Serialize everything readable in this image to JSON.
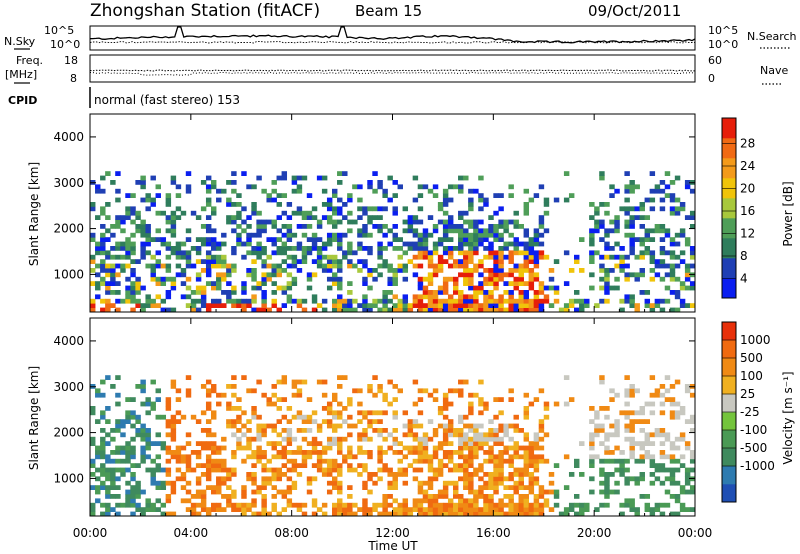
{
  "header": {
    "station": "Zhongshan Station (fitACF)",
    "beam": "Beam 15",
    "date": "09/Oct/2011",
    "nsky_label": "N.Sky",
    "nsearch_label": "N.Search",
    "freq_label": "Freq.",
    "freq_unit": "[MHz]",
    "nave_label": "Nave",
    "cpid_label": "CPID",
    "cpid_text": "normal (fast stereo) 153",
    "nsky_ticks": [
      "10^5",
      "10^0"
    ],
    "nsearch_ticks": [
      "10^5",
      "10^0"
    ],
    "freq_ticks": [
      "18",
      "8"
    ],
    "nave_ticks": [
      "60",
      "0"
    ]
  },
  "chart_data": [
    {
      "type": "heatmap",
      "name": "power",
      "ylabel": "Slant Range [km]",
      "xlabel": "Time UT",
      "ylim": [
        180,
        4500
      ],
      "xlim": [
        "00:00",
        "24:00"
      ],
      "y_ticks": [
        "1000",
        "2000",
        "3000",
        "4000"
      ],
      "x_ticks": [
        "00:00",
        "04:00",
        "08:00",
        "12:00",
        "16:00",
        "20:00",
        "00:00"
      ],
      "colorbar": {
        "label": "Power [dB]",
        "ticks": [
          "4",
          "8",
          "12",
          "16",
          "20",
          "24",
          "28"
        ],
        "colors": [
          "#0a1ef0",
          "#1f3fb4",
          "#2f7d5c",
          "#4f9e58",
          "#a8c83c",
          "#f0c40a",
          "#f39a1a",
          "#f06a14",
          "#e61e0a"
        ]
      }
    },
    {
      "type": "heatmap",
      "name": "velocity",
      "ylabel": "Slant Range [km]",
      "xlabel": "Time UT",
      "ylim": [
        180,
        4500
      ],
      "xlim": [
        "00:00",
        "24:00"
      ],
      "y_ticks": [
        "1000",
        "2000",
        "3000",
        "4000"
      ],
      "x_ticks": [
        "00:00",
        "04:00",
        "08:00",
        "12:00",
        "16:00",
        "20:00",
        "00:00"
      ],
      "colorbar": {
        "label": "Velocity [m s⁻¹]",
        "ticks": [
          "1000",
          "500",
          "100",
          "25",
          "-25",
          "-100",
          "-500",
          "-1000"
        ],
        "colors": [
          "#1f4fb4",
          "#2e7bb0",
          "#3f8a5e",
          "#4a9a55",
          "#74c43c",
          "#c8c8c0",
          "#f0b020",
          "#f08a14",
          "#f06a10",
          "#e8300a"
        ]
      }
    }
  ]
}
